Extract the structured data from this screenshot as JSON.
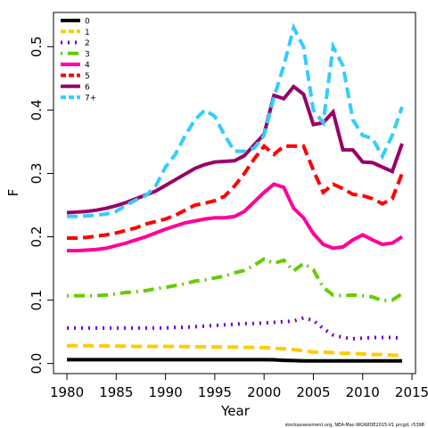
{
  "chart_data": {
    "type": "line",
    "x_label": "Year",
    "y_label": "F",
    "footnote": "stockassessment.org, NEA-Mac-WGWIDE2015-V1 prcgd, r5398",
    "x": [
      1980,
      1981,
      1982,
      1983,
      1984,
      1985,
      1986,
      1987,
      1988,
      1989,
      1990,
      1991,
      1992,
      1993,
      1994,
      1995,
      1996,
      1997,
      1998,
      1999,
      2000,
      2001,
      2002,
      2003,
      2004,
      2005,
      2006,
      2007,
      2008,
      2009,
      2010,
      2011,
      2012,
      2013,
      2014
    ],
    "xlim": [
      1978.64,
      2015.36
    ],
    "xticks": [
      1980,
      1985,
      1990,
      1995,
      2000,
      2005,
      2010,
      2015
    ],
    "ylim": [
      -0.016,
      0.554
    ],
    "yticks": [
      {
        "value": 0,
        "label": "0.0"
      },
      0.1,
      0.2,
      0.3,
      0.4,
      0.5
    ],
    "legend": "top-left",
    "series": [
      {
        "name": "0",
        "color": "#000000",
        "dash": "solid",
        "values": [
          0.006,
          0.006,
          0.006,
          0.006,
          0.006,
          0.006,
          0.006,
          0.006,
          0.006,
          0.006,
          0.006,
          0.006,
          0.006,
          0.006,
          0.006,
          0.006,
          0.006,
          0.006,
          0.006,
          0.006,
          0.006,
          0.0058,
          0.005,
          0.0045,
          0.004,
          0.004,
          0.004,
          0.004,
          0.004,
          0.004,
          0.004,
          0.004,
          0.004,
          0.004,
          0.004
        ]
      },
      {
        "name": "1",
        "color": "#ffcc00",
        "dash": "dashed",
        "values": [
          0.028,
          0.028,
          0.028,
          0.0278,
          0.0276,
          0.0274,
          0.0272,
          0.027,
          0.027,
          0.027,
          0.027,
          0.0268,
          0.0266,
          0.0264,
          0.0262,
          0.026,
          0.026,
          0.0258,
          0.0256,
          0.0254,
          0.025,
          0.024,
          0.023,
          0.022,
          0.02,
          0.018,
          0.018,
          0.017,
          0.016,
          0.016,
          0.015,
          0.014,
          0.014,
          0.013,
          0.013
        ]
      },
      {
        "name": "2",
        "color": "#6600cc",
        "dash": "dotted",
        "values": [
          0.056,
          0.056,
          0.056,
          0.056,
          0.056,
          0.056,
          0.056,
          0.056,
          0.056,
          0.056,
          0.056,
          0.057,
          0.057,
          0.058,
          0.059,
          0.06,
          0.061,
          0.062,
          0.063,
          0.063,
          0.064,
          0.065,
          0.066,
          0.067,
          0.072,
          0.068,
          0.055,
          0.045,
          0.041,
          0.039,
          0.04,
          0.041,
          0.041,
          0.041,
          0.04
        ]
      },
      {
        "name": "3",
        "color": "#66cc00",
        "dash": "dotdash",
        "values": [
          0.107,
          0.107,
          0.107,
          0.107,
          0.108,
          0.11,
          0.112,
          0.113,
          0.115,
          0.118,
          0.12,
          0.123,
          0.126,
          0.13,
          0.132,
          0.135,
          0.138,
          0.143,
          0.147,
          0.155,
          0.165,
          0.158,
          0.163,
          0.146,
          0.158,
          0.148,
          0.12,
          0.108,
          0.107,
          0.108,
          0.107,
          0.105,
          0.099,
          0.1,
          0.11
        ]
      },
      {
        "name": "4",
        "color": "#ff0099",
        "dash": "solid",
        "values": [
          0.178,
          0.178,
          0.179,
          0.18,
          0.182,
          0.186,
          0.19,
          0.195,
          0.2,
          0.206,
          0.212,
          0.217,
          0.222,
          0.225,
          0.228,
          0.23,
          0.23,
          0.232,
          0.24,
          0.255,
          0.27,
          0.283,
          0.278,
          0.245,
          0.23,
          0.205,
          0.188,
          0.182,
          0.184,
          0.195,
          0.203,
          0.195,
          0.188,
          0.19,
          0.2
        ]
      },
      {
        "name": "5",
        "color": "#ff0000",
        "dash": "dashed",
        "values": [
          0.198,
          0.198,
          0.199,
          0.201,
          0.203,
          0.206,
          0.21,
          0.214,
          0.22,
          0.224,
          0.228,
          0.234,
          0.242,
          0.25,
          0.253,
          0.257,
          0.264,
          0.28,
          0.3,
          0.323,
          0.343,
          0.33,
          0.343,
          0.343,
          0.343,
          0.305,
          0.27,
          0.283,
          0.276,
          0.267,
          0.265,
          0.26,
          0.252,
          0.26,
          0.3
        ]
      },
      {
        "name": "6",
        "color": "#990066",
        "dash": "solid",
        "values": [
          0.238,
          0.239,
          0.24,
          0.242,
          0.245,
          0.249,
          0.254,
          0.26,
          0.266,
          0.272,
          0.281,
          0.29,
          0.299,
          0.308,
          0.314,
          0.318,
          0.319,
          0.32,
          0.328,
          0.345,
          0.362,
          0.423,
          0.418,
          0.437,
          0.425,
          0.377,
          0.38,
          0.397,
          0.337,
          0.337,
          0.318,
          0.317,
          0.31,
          0.303,
          0.347
        ]
      },
      {
        "name": "7+",
        "color": "#33ccff",
        "dash": "dashed",
        "values": [
          0.232,
          0.232,
          0.233,
          0.234,
          0.236,
          0.24,
          0.25,
          0.258,
          0.265,
          0.28,
          0.31,
          0.33,
          0.36,
          0.385,
          0.4,
          0.39,
          0.36,
          0.335,
          0.335,
          0.34,
          0.36,
          0.42,
          0.47,
          0.53,
          0.5,
          0.4,
          0.38,
          0.5,
          0.47,
          0.385,
          0.36,
          0.355,
          0.327,
          0.36,
          0.405
        ]
      }
    ]
  }
}
